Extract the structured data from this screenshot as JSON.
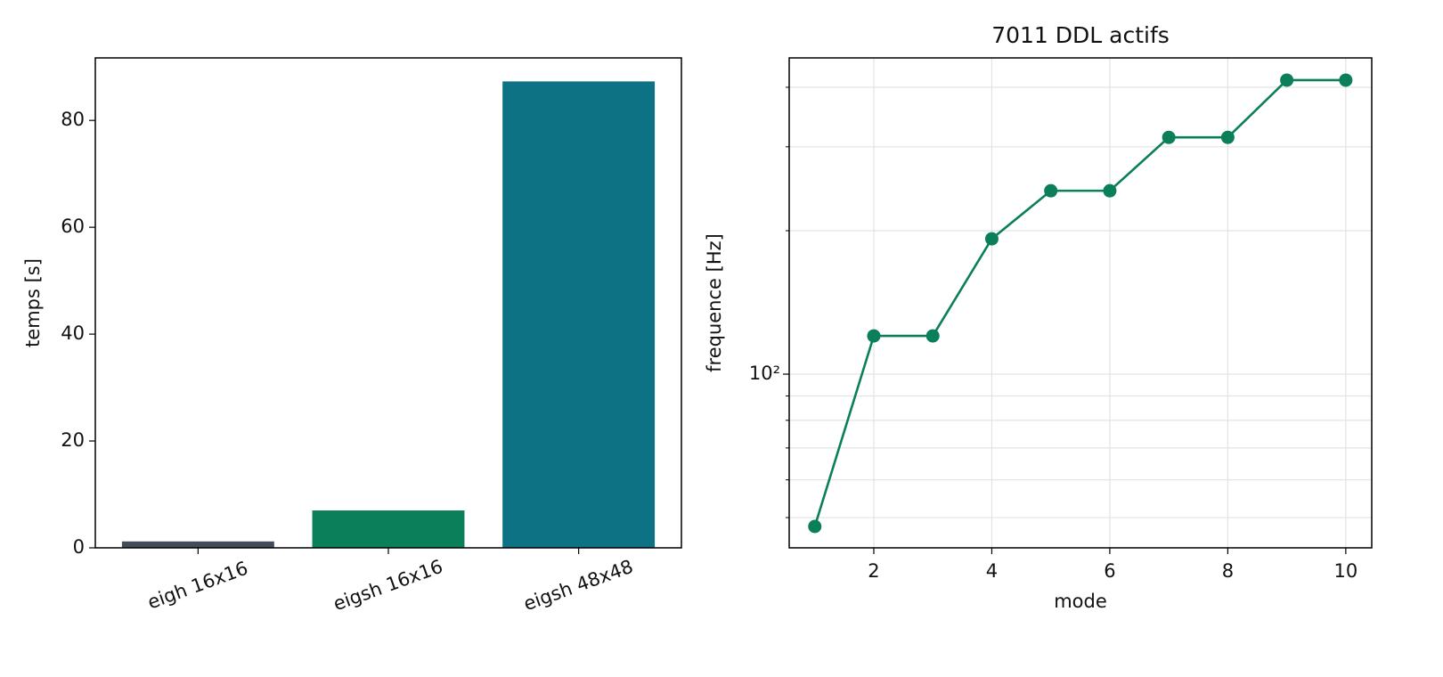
{
  "chart_data": [
    {
      "type": "bar",
      "ylabel": "temps [s]",
      "categories": [
        "eigh 16x16",
        "eigsh 16x16",
        "eigsh 48x48"
      ],
      "values": [
        1.2,
        7.0,
        87.3
      ],
      "colors": [
        "#454c59",
        "#0a7f5a",
        "#0e7285"
      ],
      "ylim": [
        0,
        91.7
      ],
      "yticks": [
        0,
        20,
        40,
        60,
        80
      ],
      "xlim": [
        -0.54,
        2.54
      ],
      "grid": false
    },
    {
      "type": "line",
      "title": "7011 DDL actifs",
      "xlabel": "mode",
      "ylabel": "frequence [Hz]",
      "x": [
        1,
        2,
        3,
        4,
        5,
        6,
        7,
        8,
        9,
        10
      ],
      "series": [
        {
          "color": "#0a7f5a",
          "values": [
            47.9,
            120.3,
            120.3,
            192.3,
            242.6,
            242.6,
            314,
            314,
            414,
            414
          ]
        }
      ],
      "xlim": [
        0.566,
        10.44
      ],
      "xticks": [
        2,
        4,
        6,
        8,
        10
      ],
      "ylim": [
        43.2,
        461
      ],
      "log_y": true,
      "yticks": [
        {
          "value": 100,
          "label": "10²"
        }
      ],
      "yminorticks": [
        50,
        60,
        70,
        80,
        90,
        200,
        300,
        400
      ],
      "grid": true
    }
  ]
}
